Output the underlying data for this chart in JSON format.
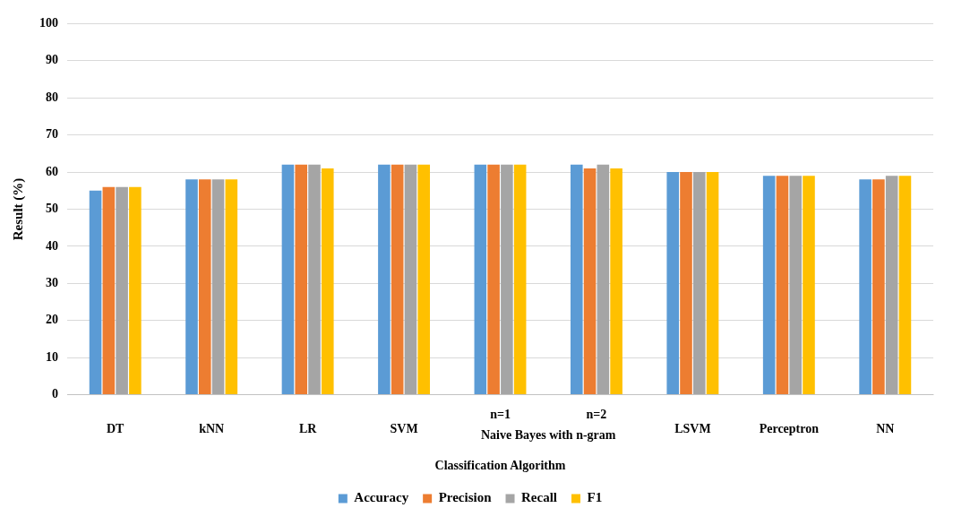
{
  "chart_data": {
    "type": "bar",
    "xlabel": "Classification Algorithm",
    "ylabel": "Result (%)",
    "categories": [
      "DT",
      "kNN",
      "LR",
      "SVM",
      "n=1",
      "n=2",
      "LSVM",
      "Perceptron",
      "NN"
    ],
    "series": [
      {
        "name": "Accuracy",
        "color": "#5b9bd5",
        "values": [
          55,
          58,
          62,
          62,
          62,
          62,
          60,
          59,
          58
        ]
      },
      {
        "name": "Precision",
        "color": "#ed7d31",
        "values": [
          56,
          58,
          62,
          62,
          62,
          61,
          60,
          59,
          58
        ]
      },
      {
        "name": "Recall",
        "color": "#a5a5a5",
        "values": [
          56,
          58,
          62,
          62,
          62,
          62,
          60,
          59,
          59
        ]
      },
      {
        "name": "F1",
        "color": "#ffc000",
        "values": [
          56,
          58,
          61,
          62,
          62,
          61,
          60,
          59,
          59
        ]
      }
    ],
    "annotations": [
      "Naive Bayes with n-gram"
    ],
    "ylim": [
      0,
      100
    ],
    "yticks": [
      0,
      10,
      20,
      30,
      40,
      50,
      60,
      70,
      80,
      90,
      100
    ],
    "grid": "y",
    "legend": "bottom"
  }
}
